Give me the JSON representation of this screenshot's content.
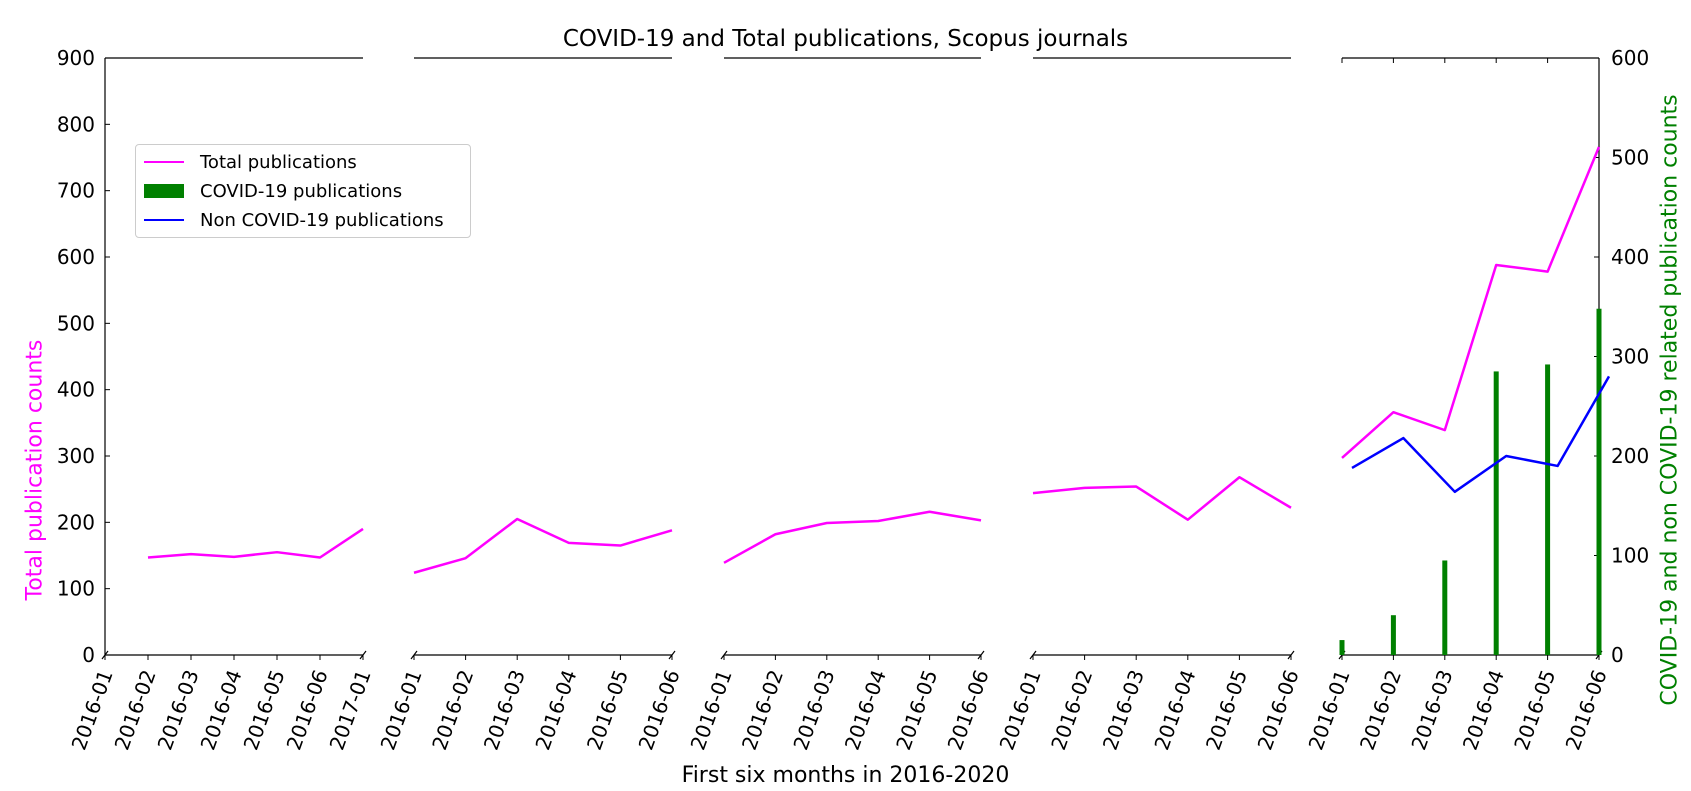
{
  "chart_data": {
    "type": "line",
    "title": "COVID-19 and Total publications, Scopus journals",
    "xlabel": "First six months in 2016-2020",
    "ylabel_left": "Total publication counts",
    "ylabel_right": "COVID-19 and non COVID-19 related publication counts",
    "ylim_left": [
      0,
      900
    ],
    "yticks_left": [
      "0",
      "100",
      "200",
      "300",
      "400",
      "500",
      "600",
      "700",
      "800",
      "900"
    ],
    "ylim_right": [
      0,
      600
    ],
    "yticks_right": [
      "0",
      "100",
      "200",
      "300",
      "400",
      "500",
      "600"
    ],
    "colors": {
      "total": "#ff00ff",
      "covid": "#008000",
      "noncovid": "#0000ff",
      "right_axis_label": "#008000"
    },
    "legend": {
      "position": "upper-left",
      "entries": [
        "Total publications",
        "COVID-19 publications",
        "Non COVID-19 publications"
      ]
    },
    "panels": [
      {
        "xticks": [
          "2016-01",
          "2016-02",
          "2016-03",
          "2016-04",
          "2016-05",
          "2016-06",
          "2017-01"
        ],
        "series": [
          {
            "name": "Total publications",
            "axis": "left",
            "values": [
              147,
              152,
              148,
              155,
              147,
              190
            ]
          }
        ]
      },
      {
        "xticks": [
          "2016-01",
          "2016-02",
          "2016-03",
          "2016-04",
          "2016-05",
          "2016-06"
        ],
        "series": [
          {
            "name": "Total publications",
            "axis": "left",
            "values": [
              124,
              146,
              205,
              169,
              165,
              188
            ]
          }
        ]
      },
      {
        "xticks": [
          "2016-01",
          "2016-02",
          "2016-03",
          "2016-04",
          "2016-05",
          "2016-06"
        ],
        "series": [
          {
            "name": "Total publications",
            "axis": "left",
            "values": [
              139,
              182,
              199,
              202,
              216,
              203
            ]
          }
        ]
      },
      {
        "xticks": [
          "2016-01",
          "2016-02",
          "2016-03",
          "2016-04",
          "2016-05",
          "2016-06"
        ],
        "series": [
          {
            "name": "Total publications",
            "axis": "left",
            "values": [
              244,
              252,
              254,
              204,
              268,
              222
            ]
          }
        ]
      },
      {
        "xticks": [
          "2016-01",
          "2016-02",
          "2016-03",
          "2016-04",
          "2016-05",
          "2016-06"
        ],
        "series": [
          {
            "name": "Total publications",
            "axis": "left",
            "values": [
              297,
              366,
              339,
              588,
              578,
              766
            ]
          },
          {
            "name": "COVID-19 publications",
            "axis": "right",
            "type": "bar",
            "values": [
              15,
              40,
              95,
              285,
              292,
              348
            ]
          },
          {
            "name": "Non COVID-19 publications",
            "axis": "right",
            "values": [
              188,
              218,
              164,
              200,
              190,
              280
            ]
          }
        ]
      }
    ]
  }
}
